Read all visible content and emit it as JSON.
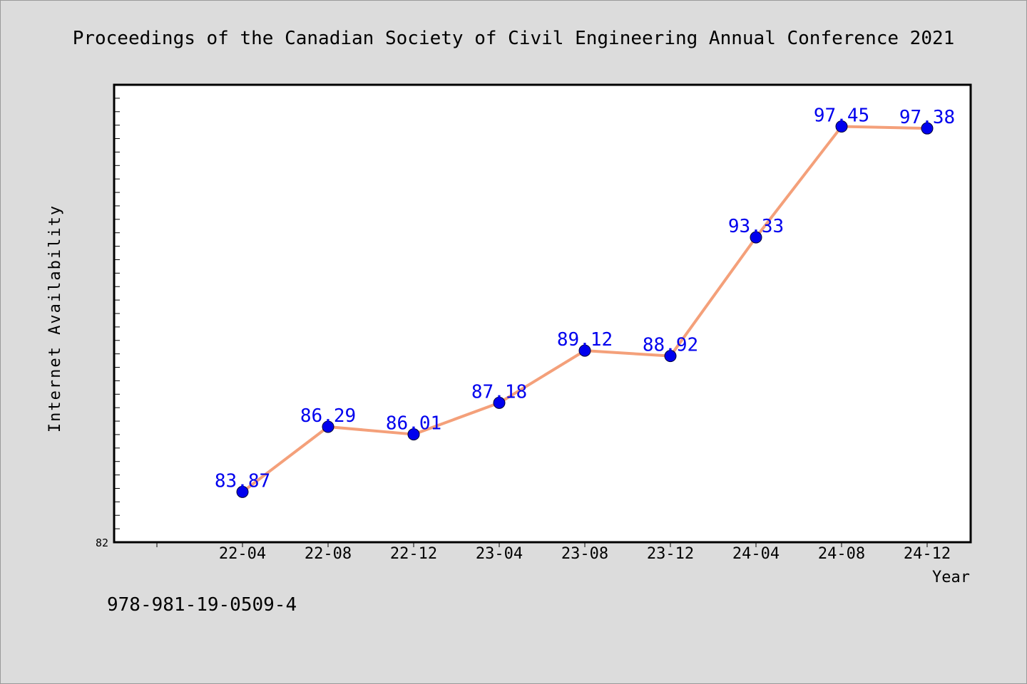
{
  "chart_data": {
    "type": "line",
    "title": "Proceedings of the Canadian Society of Civil Engineering Annual Conference 2021",
    "xlabel": "Year",
    "ylabel": "Internet Availability",
    "categories": [
      "22-04",
      "22-08",
      "22-12",
      "23-04",
      "23-08",
      "23-12",
      "24-04",
      "24-08",
      "24-12"
    ],
    "series": [
      {
        "values": [
          83.87,
          86.29,
          86.01,
          87.18,
          89.12,
          88.92,
          93.33,
          97.45,
          97.38
        ]
      }
    ],
    "value_labels": [
      "83.87",
      "86.29",
      "86.01",
      "87.18",
      "89.12",
      "88.92",
      "93.33",
      "97.45",
      "97.38"
    ],
    "y_tick_labels": [
      "82"
    ],
    "ylim": [
      82,
      99
    ],
    "grid": false,
    "legend": "none",
    "line_color": "#f4a07a",
    "marker_color": "#0000ee",
    "label_color": "#0000ee"
  },
  "footer": {
    "isbn": "978-981-19-0509-4"
  }
}
